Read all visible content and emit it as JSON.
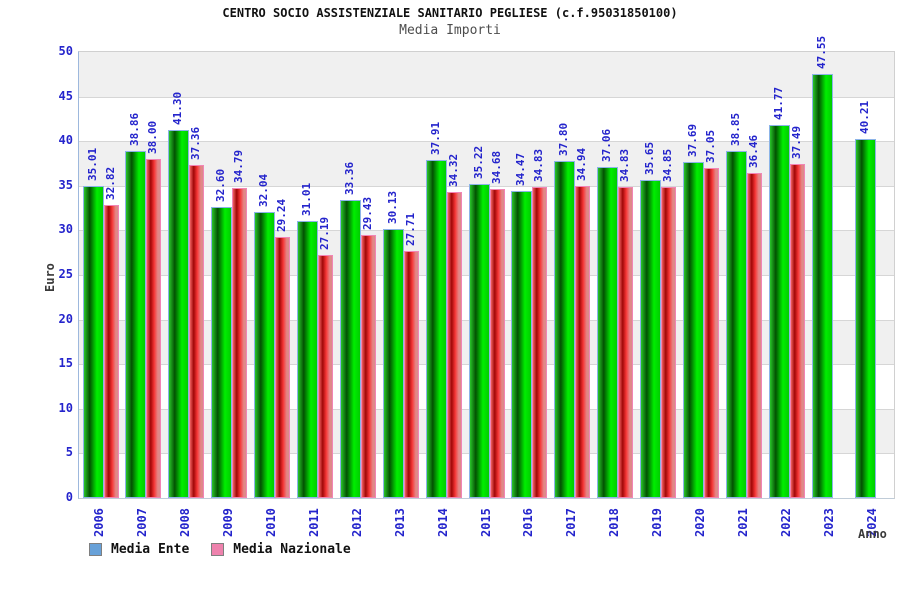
{
  "header": {
    "title": "CENTRO SOCIO ASSISTENZIALE SANITARIO PEGLIESE (c.f.95031850100)",
    "subtitle": "Media Importi"
  },
  "legend": {
    "items": [
      {
        "label": "Media Ente",
        "swatch_color": "#68a1d8"
      },
      {
        "label": "Media Nazionale",
        "swatch_color": "#ee82ad"
      }
    ]
  },
  "chart_data": {
    "type": "bar",
    "title": "CENTRO SOCIO ASSISTENZIALE SANITARIO PEGLIESE (c.f.95031850100)",
    "subtitle": "Media Importi",
    "xlabel": "Anno",
    "ylabel": "Euro",
    "ylim": [
      0,
      50
    ],
    "ytick_step": 5,
    "y_ticks": [
      0,
      5,
      10,
      15,
      20,
      25,
      30,
      35,
      40,
      45,
      50
    ],
    "grid": "horizontal-bands",
    "legend_position": "bottom-left",
    "categories": [
      "2006",
      "2007",
      "2008",
      "2009",
      "2010",
      "2011",
      "2012",
      "2013",
      "2014",
      "2015",
      "2016",
      "2017",
      "2018",
      "2019",
      "2020",
      "2021",
      "2022",
      "2023",
      "2024"
    ],
    "series": [
      {
        "name": "Media Ente",
        "values": [
          35.01,
          38.86,
          41.3,
          32.6,
          32.04,
          31.01,
          33.36,
          30.13,
          37.91,
          35.22,
          34.47,
          37.8,
          37.06,
          35.65,
          37.69,
          38.85,
          41.77,
          47.55,
          40.21
        ],
        "labels": [
          "35.01",
          "38.86",
          "41.30",
          "32.60",
          "32.04",
          "31.01",
          "33.36",
          "30.13",
          "37.91",
          "35.22",
          "34.47",
          "37.80",
          "37.06",
          "35.65",
          "37.69",
          "38.85",
          "41.77",
          "47.55",
          "40.21"
        ]
      },
      {
        "name": "Media Nazionale",
        "values": [
          32.82,
          38.0,
          37.36,
          34.79,
          29.24,
          27.19,
          29.43,
          27.71,
          34.32,
          34.68,
          34.83,
          34.94,
          34.83,
          34.85,
          37.05,
          36.46,
          37.49,
          null,
          null
        ],
        "labels": [
          "32.82",
          "38.00",
          "37.36",
          "34.79",
          "29.24",
          "27.19",
          "29.43",
          "27.71",
          "34.32",
          "34.68",
          "34.83",
          "34.94",
          "34.83",
          "34.85",
          "37.05",
          "36.46",
          "37.49",
          "",
          ""
        ]
      }
    ],
    "colors": {
      "value_label": "#2424cc",
      "axis_tick_label": "#2424cc",
      "band_gray": "#f0f0f0",
      "band_white": "#ffffff",
      "gridline": "#d6d6d6",
      "ente_gradient": [
        "#29c529 0%",
        "#035203 30%",
        "#00ee00 68%",
        "#00cd00 100%"
      ],
      "ente_border": "#8cb4e8",
      "nazionale_gradient": [
        "#f06060 0%",
        "#a00707 28%",
        "#f53535 55%",
        "#e68585 82%",
        "#d98c8c 100%"
      ],
      "nazionale_border": "#f285b5"
    }
  }
}
